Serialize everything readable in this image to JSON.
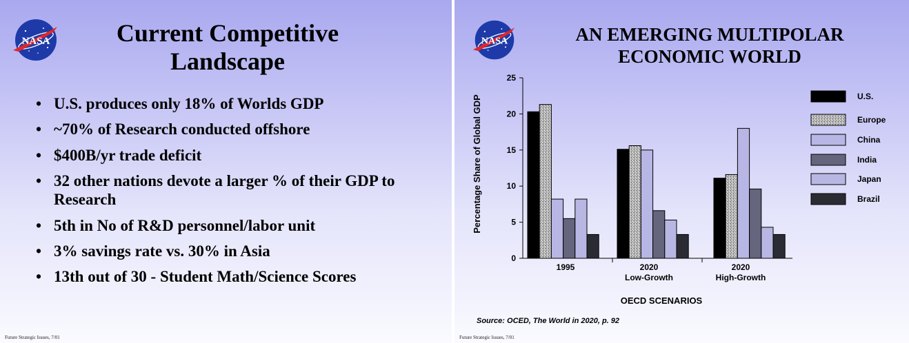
{
  "slides": {
    "left": {
      "title": "Current Competitive Landscape",
      "logo_text": "NASA",
      "bullets": [
        "U.S. produces only 18% of Worlds GDP",
        "~70% of Research conducted offshore",
        "$400B/yr trade deficit",
        "32 other nations devote a larger % of their GDP to Research",
        "5th in No of R&D personnel/labor unit",
        "3% savings rate vs. 30% in Asia",
        "13th out of 30 - Student Math/Science Scores"
      ],
      "footer": "Future Strategic Issues, 7/01"
    },
    "right": {
      "title_line1": "AN EMERGING MULTIPOLAR",
      "title_line2": "ECONOMIC WORLD",
      "logo_text": "NASA",
      "source": "Source:  OCED, The World in 2020, p. 92",
      "footer": "Future Strategic Issues, 7/01"
    }
  },
  "colors": {
    "bg_top": "#a9a8ef",
    "bg_bottom": "#fafaff",
    "nasa_blue": "#1d3aa8",
    "nasa_red": "#e0262b"
  },
  "chart_data": {
    "type": "bar",
    "title": "",
    "xlabel": "OECD SCENARIOS",
    "ylabel": "Percentage Share of Global GDP",
    "ylim": [
      0,
      25
    ],
    "yticks": [
      0,
      5,
      10,
      15,
      20,
      25
    ],
    "categories": [
      {
        "line1": "1995",
        "line2": ""
      },
      {
        "line1": "2020",
        "line2": "Low-Growth"
      },
      {
        "line1": "2020",
        "line2": "High-Growth"
      }
    ],
    "legend_position": "right",
    "grid": false,
    "series": [
      {
        "name": "U.S.",
        "values": [
          20.3,
          15.1,
          11.1
        ],
        "color": "#000000",
        "pattern": "solid"
      },
      {
        "name": "Europe",
        "values": [
          21.3,
          15.6,
          11.6
        ],
        "color": "#b8b8b8",
        "pattern": "speckle"
      },
      {
        "name": "China",
        "values": [
          8.2,
          15.0,
          18.0
        ],
        "color": "#b7b6e4",
        "pattern": "solid"
      },
      {
        "name": "India",
        "values": [
          5.5,
          6.6,
          9.6
        ],
        "color": "#65657e",
        "pattern": "solid"
      },
      {
        "name": "Japan",
        "values": [
          8.2,
          5.3,
          4.3
        ],
        "color": "#b8b7e3",
        "pattern": "solid"
      },
      {
        "name": "Brazil",
        "values": [
          3.3,
          3.3,
          3.3
        ],
        "color": "#2b2b33",
        "pattern": "solid"
      }
    ]
  }
}
